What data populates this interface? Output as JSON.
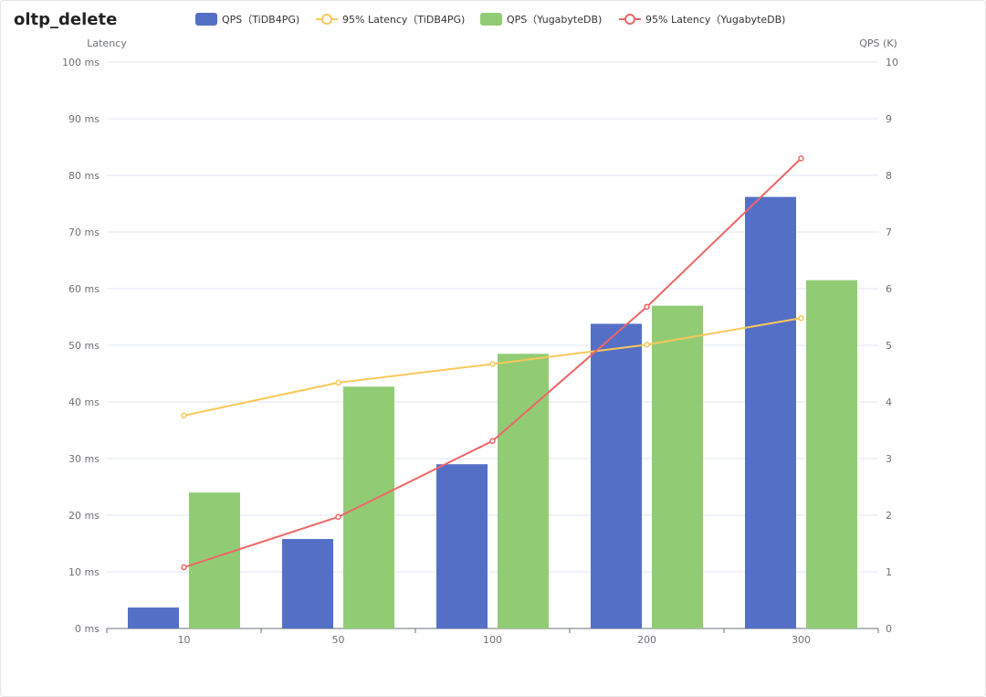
{
  "title": "oltp_delete",
  "chart_data": {
    "type": "bar",
    "title": "oltp_delete",
    "categories": [
      "10",
      "50",
      "100",
      "200",
      "300"
    ],
    "xlabel": "",
    "y_left": {
      "label": "Latency",
      "range": [
        0,
        100
      ],
      "ticks": [
        "0 ms",
        "10 ms",
        "20 ms",
        "30 ms",
        "40 ms",
        "50 ms",
        "60 ms",
        "70 ms",
        "80 ms",
        "90 ms",
        "100 ms"
      ]
    },
    "y_right": {
      "label": "QPS (K)",
      "range": [
        0,
        10
      ],
      "ticks": [
        "0",
        "1",
        "2",
        "3",
        "4",
        "5",
        "6",
        "7",
        "8",
        "9",
        "10"
      ]
    },
    "grid": true,
    "legend_position": "top-center",
    "series": [
      {
        "name": "QPS（TiDB4PG)",
        "type": "bar",
        "axis": "right",
        "color": "#5470c6",
        "values": [
          0.37,
          1.58,
          2.9,
          5.38,
          7.62
        ]
      },
      {
        "name": "95% Latency（TiDB4PG)",
        "type": "line",
        "axis": "left",
        "color": "#fac858",
        "values": [
          37.6,
          43.4,
          46.7,
          50.1,
          54.8
        ]
      },
      {
        "name": "QPS（YugabyteDB)",
        "type": "bar",
        "axis": "right",
        "color": "#91cc75",
        "values": [
          2.4,
          4.27,
          4.85,
          5.7,
          6.15
        ]
      },
      {
        "name": "95% Latency（YugabyteDB)",
        "type": "line",
        "axis": "left",
        "color": "#ee6666",
        "values": [
          10.8,
          19.7,
          33.1,
          56.8,
          83.0
        ]
      }
    ]
  }
}
